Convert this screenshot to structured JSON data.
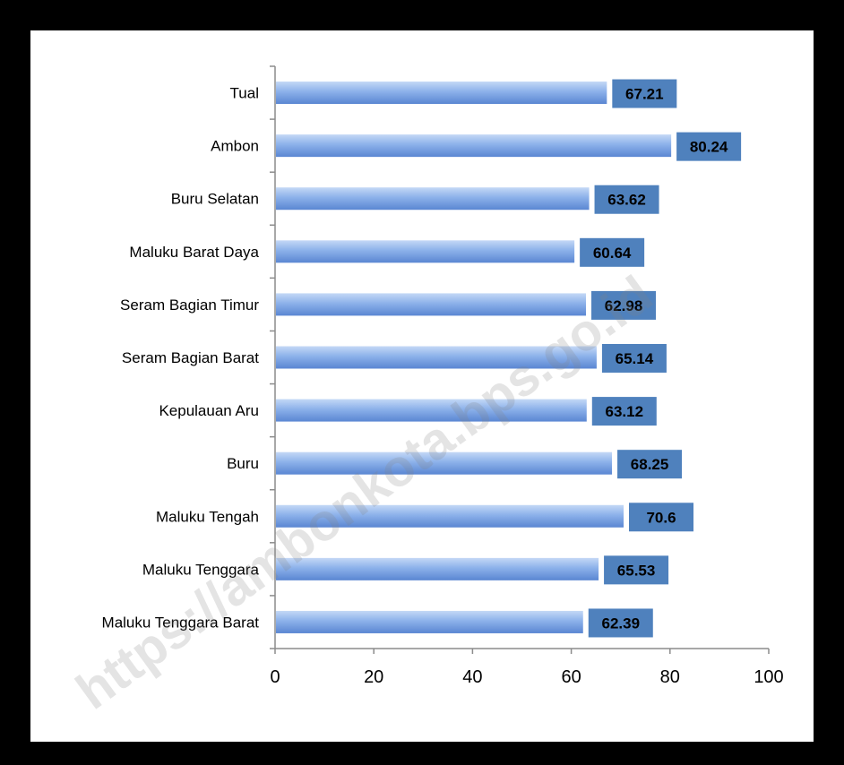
{
  "chart_data": {
    "type": "bar",
    "orientation": "horizontal",
    "categories": [
      "Tual",
      "Ambon",
      "Buru Selatan",
      "Maluku Barat Daya",
      "Seram Bagian Timur",
      "Seram Bagian Barat",
      "Kepulauan Aru",
      "Buru",
      "Maluku Tengah",
      "Maluku Tenggara",
      "Maluku Tenggara Barat"
    ],
    "values": [
      67.21,
      80.24,
      63.62,
      60.64,
      62.98,
      65.14,
      63.12,
      68.25,
      70.6,
      65.53,
      62.39
    ],
    "value_labels": [
      "67.21",
      "80.24",
      "63.62",
      "60.64",
      "62.98",
      "65.14",
      "63.12",
      "68.25",
      "70.6",
      "65.53",
      "62.39"
    ],
    "xlim": [
      0,
      100
    ],
    "xticks": [
      0,
      20,
      40,
      60,
      80,
      100
    ],
    "xtick_labels": [
      "0",
      "20",
      "40",
      "60",
      "80",
      "100"
    ],
    "grid": false,
    "legend": "none",
    "bar_color": "#6f9be3",
    "label_box_color": "#4f81bd",
    "watermark": "https://ambonkota.bps.go.id"
  }
}
